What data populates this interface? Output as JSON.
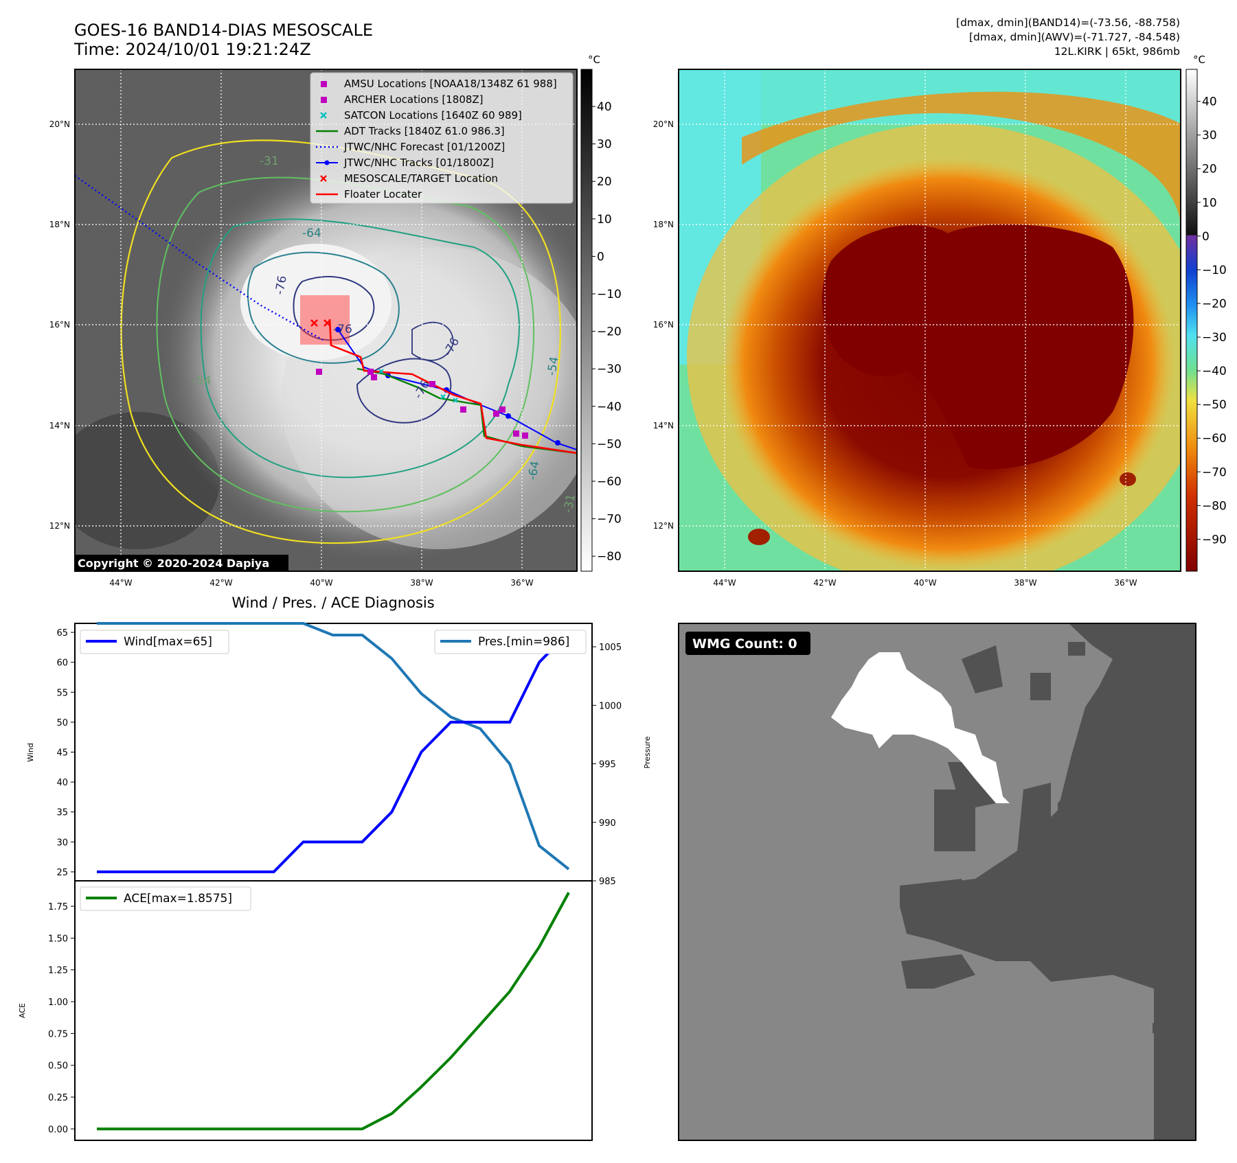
{
  "header": {
    "title_line1": "GOES-16 BAND14-DIAS MESOSCALE",
    "title_line2": "Time: 2024/10/01 19:21:24Z",
    "info_line1": "[dmax, dmin](BAND14)=(-73.56, -88.758)",
    "info_line2": "[dmax, dmin](AWV)=(-71.727, -84.548)",
    "info_line3": "12L.KIRK | 65kt, 986mb"
  },
  "map": {
    "lat_labels": [
      "20°N",
      "18°N",
      "16°N",
      "14°N",
      "12°N"
    ],
    "lon_labels": [
      "44°W",
      "42°W",
      "40°W",
      "38°W",
      "36°W"
    ],
    "copyright": "Copyright © 2020-2024 Dapiya",
    "contour_labels": [
      "-31",
      "-54",
      "-64",
      "-76",
      "-76",
      "-76",
      "-76",
      "-54",
      "-64",
      "-31"
    ],
    "legend": [
      {
        "label": "AMSU Locations [NOAA18/1348Z 61 988]",
        "color": "#c000c0",
        "symbol": "square"
      },
      {
        "label": "ARCHER Locations [1808Z]",
        "color": "#c000c0",
        "symbol": "square"
      },
      {
        "label": "SATCON Locations [1640Z 60 989]",
        "color": "#00c0c0",
        "symbol": "x"
      },
      {
        "label": "ADT Tracks [1840Z 61.0 986.3]",
        "color": "#008000",
        "symbol": "line"
      },
      {
        "label": "JTWC/NHC Forecast [01/1200Z]",
        "color": "#0000ff",
        "symbol": "dotted"
      },
      {
        "label": "JTWC/NHC Tracks [01/1800Z]",
        "color": "#0000ff",
        "symbol": "line-dot"
      },
      {
        "label": "MESOSCALE/TARGET Location",
        "color": "#ff0000",
        "symbol": "x"
      },
      {
        "label": "Floater Locater",
        "color": "#ff0000",
        "symbol": "line"
      }
    ]
  },
  "colorbar_gray": {
    "unit": "°C",
    "ticks": [
      "40",
      "30",
      "20",
      "10",
      "0",
      "−10",
      "−20",
      "−30",
      "−40",
      "−50",
      "−60",
      "−70",
      "−80"
    ]
  },
  "colorbar_color": {
    "unit": "°C",
    "ticks": [
      "40",
      "30",
      "20",
      "10",
      "0",
      "−10",
      "−20",
      "−30",
      "−40",
      "−50",
      "−60",
      "−70",
      "−80",
      "−90"
    ]
  },
  "wmg": {
    "label": "WMG Count: 0"
  },
  "chart_data": [
    {
      "type": "line",
      "title": "Wind / Pres. / ACE Diagnosis",
      "ylabel": "Wind",
      "ylim": [
        23.5,
        66.5
      ],
      "yticks": [
        25,
        30,
        35,
        40,
        45,
        50,
        55,
        60,
        65
      ],
      "x": [
        0,
        1,
        2,
        3,
        4,
        5,
        6,
        7,
        8,
        9,
        10,
        11,
        12,
        13,
        14,
        15,
        16
      ],
      "series": [
        {
          "name": "Wind[max=65]",
          "color": "#0000ff",
          "values": [
            25,
            25,
            25,
            25,
            25,
            25,
            25,
            30,
            30,
            30,
            35,
            45,
            50,
            50,
            50,
            60,
            65
          ]
        }
      ],
      "y2label": "Pressure",
      "y2lim": [
        985,
        1007
      ],
      "y2ticks": [
        985,
        990,
        995,
        1000,
        1005
      ],
      "series_right": [
        {
          "name": "Pres.[min=986]",
          "color": "#1f77b4",
          "values": [
            1007,
            1007,
            1007,
            1007,
            1007,
            1007,
            1007,
            1007,
            1006,
            1006,
            1004,
            1001,
            999,
            998,
            995,
            988,
            986
          ]
        }
      ]
    },
    {
      "type": "line",
      "ylabel": "ACE",
      "ylim": [
        -0.09,
        1.95
      ],
      "yticks": [
        "0.00",
        "0.25",
        "0.50",
        "0.75",
        "1.00",
        "1.25",
        "1.50",
        "1.75"
      ],
      "x": [
        0,
        1,
        2,
        3,
        4,
        5,
        6,
        7,
        8,
        9,
        10,
        11,
        12,
        13,
        14,
        15,
        16
      ],
      "series": [
        {
          "name": "ACE[max=1.8575]",
          "color": "#008000",
          "values": [
            0,
            0,
            0,
            0,
            0,
            0,
            0,
            0,
            0,
            0,
            0.12,
            0.33,
            0.56,
            0.82,
            1.08,
            1.43,
            1.8575
          ]
        }
      ]
    }
  ]
}
